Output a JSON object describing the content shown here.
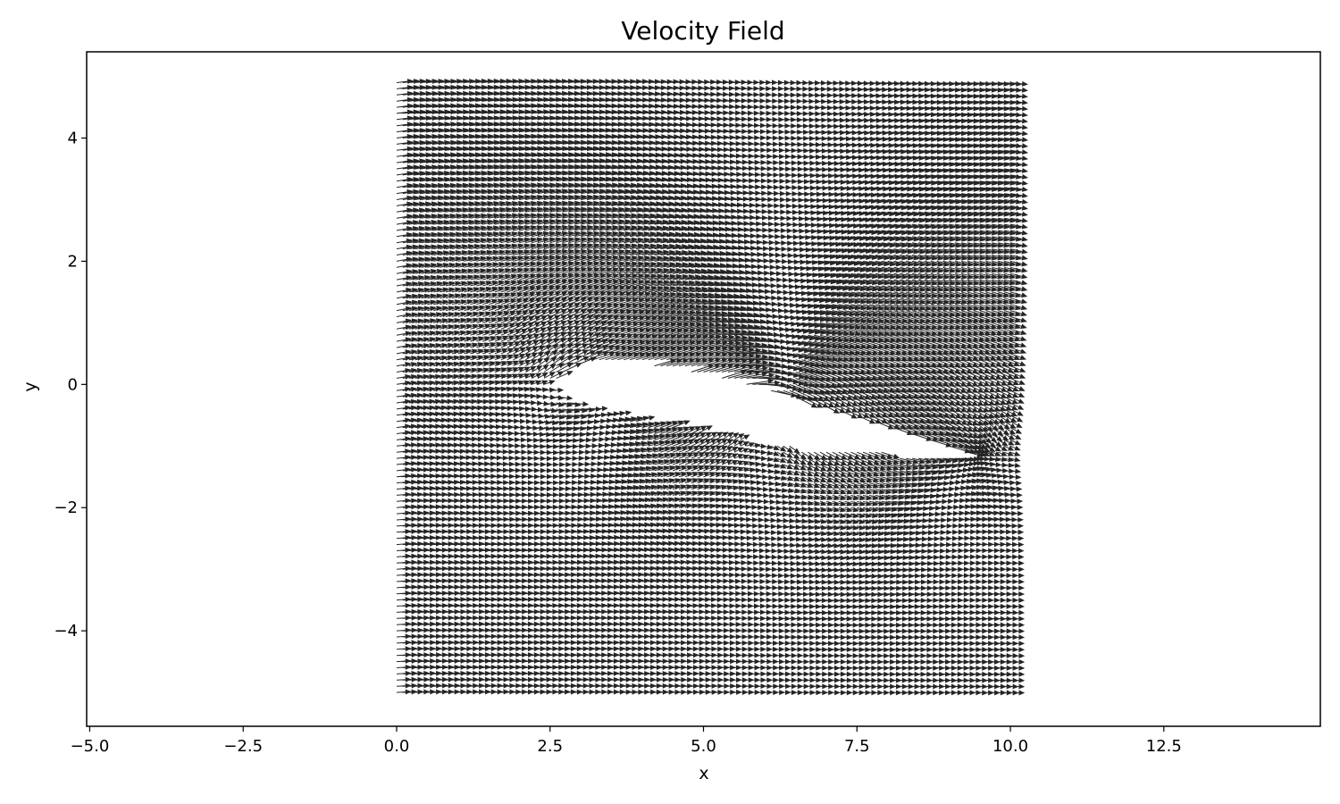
{
  "chart_data": {
    "type": "quiver",
    "title": "Velocity Field",
    "xlabel": "x",
    "ylabel": "y",
    "xlim": [
      -5.05,
      15.05
    ],
    "ylim": [
      -5.55,
      5.4
    ],
    "xticks": [
      -5.0,
      -2.5,
      0.0,
      2.5,
      5.0,
      7.5,
      10.0,
      12.5
    ],
    "xtick_labels": [
      "−5.0",
      "−2.5",
      "0.0",
      "2.5",
      "5.0",
      "7.5",
      "10.0",
      "12.5"
    ],
    "yticks": [
      -4,
      -2,
      0,
      2,
      4
    ],
    "ytick_labels": [
      "−4",
      "−2",
      "0",
      "2",
      "4"
    ],
    "grid": false,
    "legend": "none",
    "arrow_color": "#000000",
    "field": {
      "x_range": [
        0.0,
        10.0
      ],
      "y_range": [
        -5.0,
        4.9
      ],
      "spacing": 0.1,
      "freestream": [
        1.0,
        0.0
      ],
      "body": "airfoil",
      "body_upper_surface": [
        [
          2.5,
          0.0
        ],
        [
          2.7,
          0.2
        ],
        [
          3.0,
          0.35
        ],
        [
          3.5,
          0.38
        ],
        [
          4.5,
          0.25
        ],
        [
          5.5,
          0.05
        ],
        [
          6.5,
          -0.2
        ],
        [
          7.5,
          -0.5
        ],
        [
          8.5,
          -0.85
        ],
        [
          9.3,
          -1.1
        ]
      ],
      "body_lower_surface": [
        [
          2.5,
          0.0
        ],
        [
          2.7,
          -0.25
        ],
        [
          3.2,
          -0.4
        ],
        [
          4.0,
          -0.6
        ],
        [
          5.0,
          -0.8
        ],
        [
          6.0,
          -0.95
        ],
        [
          7.0,
          -1.05
        ],
        [
          8.0,
          -1.1
        ],
        [
          9.3,
          -1.15
        ]
      ]
    }
  }
}
